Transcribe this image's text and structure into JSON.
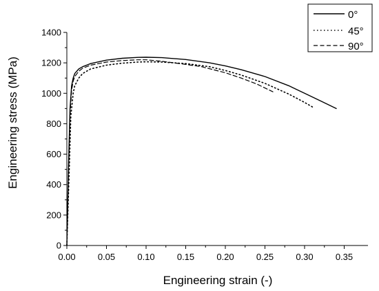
{
  "chart_data": {
    "type": "line",
    "xlabel": "Engineering strain (-)",
    "ylabel": "Engineering stress (MPa)",
    "xlim": [
      0,
      0.38
    ],
    "ylim": [
      0,
      1400
    ],
    "x_ticks": [
      0,
      0.05,
      0.1,
      0.15,
      0.2,
      0.25,
      0.3,
      0.35
    ],
    "x_tick_labels": [
      "0.00",
      "0.05",
      "0.10",
      "0.15",
      "0.20",
      "0.25",
      "0.30",
      "0.35"
    ],
    "y_ticks": [
      0,
      200,
      400,
      600,
      800,
      1000,
      1200,
      1400
    ],
    "y_tick_labels": [
      "0",
      "200",
      "400",
      "600",
      "800",
      "1000",
      "1200",
      "1400"
    ],
    "legend_position": "top-right",
    "grid": false,
    "series": [
      {
        "name": "0°",
        "style": "solid",
        "color": "#000000",
        "x": [
          0,
          0.002,
          0.004,
          0.006,
          0.008,
          0.01,
          0.015,
          0.02,
          0.03,
          0.05,
          0.07,
          0.09,
          0.1,
          0.12,
          0.15,
          0.18,
          0.2,
          0.22,
          0.25,
          0.28,
          0.3,
          0.32,
          0.34
        ],
        "y": [
          0,
          500,
          900,
          1050,
          1100,
          1130,
          1160,
          1175,
          1195,
          1218,
          1230,
          1236,
          1237,
          1234,
          1222,
          1200,
          1180,
          1155,
          1110,
          1050,
          1000,
          950,
          900
        ]
      },
      {
        "name": "45°",
        "style": "dotted",
        "color": "#000000",
        "x": [
          0,
          0.003,
          0.005,
          0.008,
          0.01,
          0.015,
          0.02,
          0.03,
          0.05,
          0.07,
          0.09,
          0.1,
          0.12,
          0.15,
          0.18,
          0.2,
          0.22,
          0.25,
          0.28,
          0.3,
          0.31
        ],
        "y": [
          0,
          500,
          850,
          1000,
          1050,
          1100,
          1130,
          1160,
          1185,
          1198,
          1205,
          1207,
          1205,
          1195,
          1175,
          1150,
          1120,
          1065,
          995,
          940,
          910
        ]
      },
      {
        "name": "90°",
        "style": "dashed",
        "color": "#000000",
        "x": [
          0,
          0.002,
          0.004,
          0.006,
          0.008,
          0.01,
          0.015,
          0.02,
          0.03,
          0.05,
          0.07,
          0.09,
          0.1,
          0.12,
          0.15,
          0.17,
          0.2,
          0.22,
          0.24,
          0.26
        ],
        "y": [
          0,
          450,
          850,
          1020,
          1080,
          1110,
          1145,
          1165,
          1185,
          1205,
          1215,
          1220,
          1220,
          1210,
          1190,
          1175,
          1135,
          1100,
          1060,
          1010
        ]
      }
    ]
  }
}
